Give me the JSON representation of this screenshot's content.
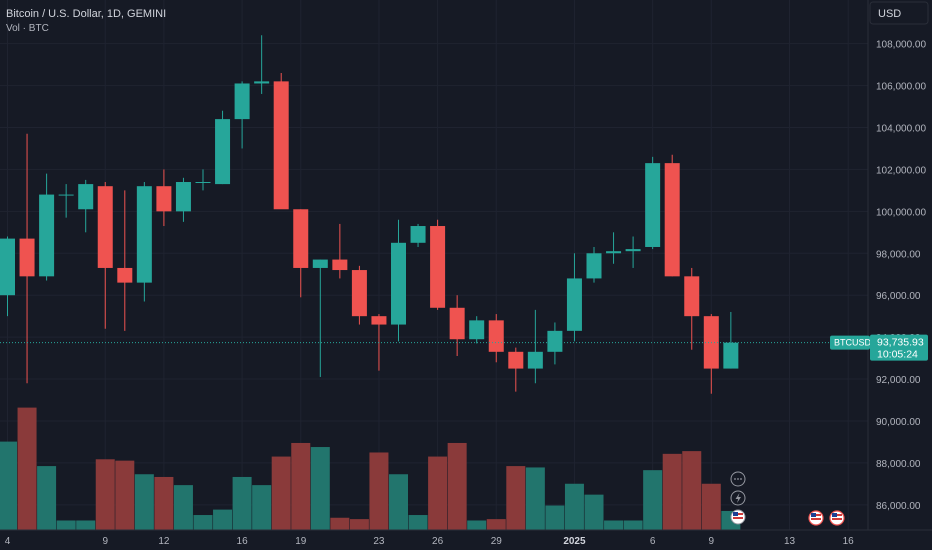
{
  "header": {
    "symbol_line": "Bitcoin / U.S. Dollar, 1D, GEMINI",
    "volume_line": "Vol · BTC"
  },
  "currency_button": "USD",
  "price_tag": {
    "symbol": "BTCUSD",
    "price": "93,735.93",
    "countdown": "10:05:24"
  },
  "colors": {
    "background": "#161a25",
    "up": "#26a69a",
    "down": "#ef5350",
    "up_volume": "#22756d",
    "down_volume": "#8a3a3a",
    "text": "#b2b5be",
    "grid": "#1f2330"
  },
  "event_icons": [
    "ellipsis-icon",
    "lightning-icon",
    "us-flag-icon",
    "us-flag-icon",
    "us-flag-icon"
  ],
  "chart_data": {
    "type": "candlestick",
    "title": "Bitcoin / U.S. Dollar, 1D, GEMINI",
    "ylim": [
      84800,
      109700
    ],
    "y_ticks": [
      86000,
      88000,
      90000,
      92000,
      94000,
      96000,
      98000,
      100000,
      102000,
      104000,
      106000,
      108000
    ],
    "y_tick_labels": [
      "86,000.00",
      "88,000.00",
      "90,000.00",
      "92,000.00",
      "94,000.00",
      "96,000.00",
      "98,000.00",
      "100,000.00",
      "102,000.00",
      "104,000.00",
      "106,000.00",
      "108,000.00"
    ],
    "x_labels": [
      {
        "label": "4",
        "index": 0
      },
      {
        "label": "9",
        "index": 5
      },
      {
        "label": "12",
        "index": 8
      },
      {
        "label": "16",
        "index": 12
      },
      {
        "label": "19",
        "index": 15
      },
      {
        "label": "23",
        "index": 19
      },
      {
        "label": "26",
        "index": 22
      },
      {
        "label": "29",
        "index": 25
      },
      {
        "label": "2025",
        "index": 29
      },
      {
        "label": "6",
        "index": 33
      },
      {
        "label": "9",
        "index": 36
      },
      {
        "label": "13",
        "index": 40
      },
      {
        "label": "16",
        "index": 43
      }
    ],
    "current_price": 93735.93,
    "candles": [
      {
        "o": 96000,
        "h": 98800,
        "l": 95000,
        "c": 98700
      },
      {
        "o": 98700,
        "h": 103700,
        "l": 91800,
        "c": 96900
      },
      {
        "o": 96900,
        "h": 101800,
        "l": 96700,
        "c": 100800
      },
      {
        "o": 100800,
        "h": 101300,
        "l": 99700,
        "c": 100800
      },
      {
        "o": 100100,
        "h": 101500,
        "l": 99000,
        "c": 101300
      },
      {
        "o": 101200,
        "h": 101400,
        "l": 94400,
        "c": 97300
      },
      {
        "o": 97300,
        "h": 101000,
        "l": 94300,
        "c": 96600
      },
      {
        "o": 96600,
        "h": 101400,
        "l": 95700,
        "c": 101200
      },
      {
        "o": 101200,
        "h": 102000,
        "l": 99300,
        "c": 100000
      },
      {
        "o": 100000,
        "h": 101600,
        "l": 99500,
        "c": 101400
      },
      {
        "o": 101400,
        "h": 102000,
        "l": 101000,
        "c": 101400
      },
      {
        "o": 101300,
        "h": 104800,
        "l": 101300,
        "c": 104400
      },
      {
        "o": 104400,
        "h": 106200,
        "l": 103000,
        "c": 106100
      },
      {
        "o": 106100,
        "h": 108400,
        "l": 105600,
        "c": 106200
      },
      {
        "o": 106200,
        "h": 106600,
        "l": 100200,
        "c": 100100
      },
      {
        "o": 100100,
        "h": 100100,
        "l": 95900,
        "c": 97300
      },
      {
        "o": 97300,
        "h": 97700,
        "l": 92100,
        "c": 97700
      },
      {
        "o": 97700,
        "h": 99400,
        "l": 96800,
        "c": 97200
      },
      {
        "o": 97200,
        "h": 97400,
        "l": 94600,
        "c": 95000
      },
      {
        "o": 95000,
        "h": 95100,
        "l": 92400,
        "c": 94600
      },
      {
        "o": 94600,
        "h": 99600,
        "l": 93800,
        "c": 98500
      },
      {
        "o": 98500,
        "h": 99400,
        "l": 98300,
        "c": 99300
      },
      {
        "o": 99300,
        "h": 99600,
        "l": 95300,
        "c": 95400
      },
      {
        "o": 95400,
        "h": 96000,
        "l": 93100,
        "c": 93900
      },
      {
        "o": 93900,
        "h": 95000,
        "l": 93700,
        "c": 94800
      },
      {
        "o": 94800,
        "h": 95100,
        "l": 92800,
        "c": 93300
      },
      {
        "o": 93300,
        "h": 93500,
        "l": 91400,
        "c": 92500
      },
      {
        "o": 92500,
        "h": 95300,
        "l": 91800,
        "c": 93300
      },
      {
        "o": 93300,
        "h": 94700,
        "l": 92700,
        "c": 94300
      },
      {
        "o": 94300,
        "h": 98000,
        "l": 93800,
        "c": 96800
      },
      {
        "o": 96800,
        "h": 98300,
        "l": 96600,
        "c": 98000
      },
      {
        "o": 98000,
        "h": 99000,
        "l": 97500,
        "c": 98100
      },
      {
        "o": 98100,
        "h": 98800,
        "l": 97300,
        "c": 98200
      },
      {
        "o": 98300,
        "h": 102600,
        "l": 98200,
        "c": 102300
      },
      {
        "o": 102300,
        "h": 102700,
        "l": 96900,
        "c": 96900
      },
      {
        "o": 96900,
        "h": 97300,
        "l": 93400,
        "c": 95000
      },
      {
        "o": 95000,
        "h": 95100,
        "l": 91300,
        "c": 92500
      },
      {
        "o": 92500,
        "h": 95200,
        "l": 92500,
        "c": 93736
      }
    ],
    "volume_ylim": [
      0,
      100
    ],
    "volume": [
      65,
      90,
      47,
      7,
      7,
      52,
      51,
      41,
      39,
      33,
      11,
      15,
      39,
      33,
      54,
      64,
      61,
      9,
      8,
      57,
      41,
      11,
      54,
      64,
      7,
      8,
      47,
      46,
      18,
      34,
      26,
      7,
      7,
      44,
      56,
      58,
      34,
      14
    ]
  }
}
